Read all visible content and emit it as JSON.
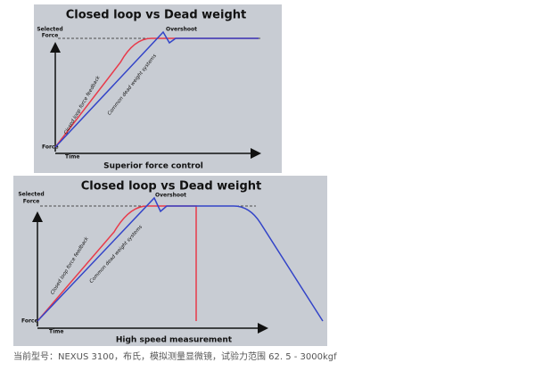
{
  "figures": [
    {
      "title": "Closed loop vs Dead weight",
      "selected": [
        "Selected",
        "Force"
      ],
      "force": "Force",
      "time": "Time",
      "overshoot": "Overshoot",
      "red_label": "Closed loop force feedback",
      "blue_label": "Common dead weight systems",
      "caption": "Superior force control"
    },
    {
      "title": "Closed loop vs Dead weight",
      "selected": [
        "Selected",
        "Force"
      ],
      "force": "Force",
      "time": "Time",
      "overshoot": "Overshoot",
      "red_label": "Closed loop force feedback",
      "blue_label": "Common dead weight systems",
      "caption": "High speed measurement"
    }
  ],
  "caption": "当前型号：NEXUS 3100，布氏，模拟测量显微镜，试验力范围 62. 5 - 3000kgf"
}
